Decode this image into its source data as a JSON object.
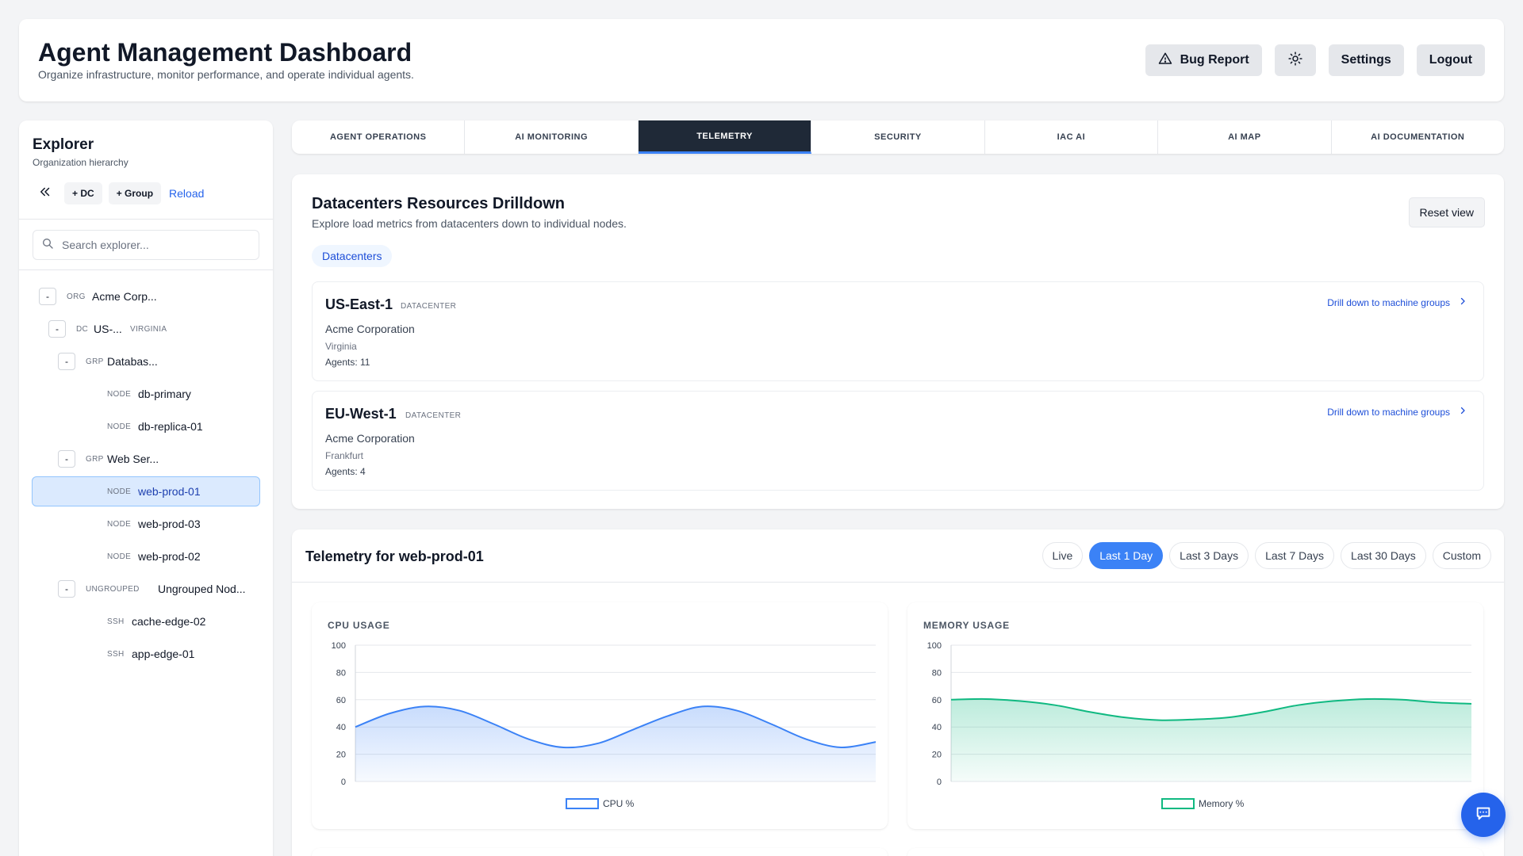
{
  "header": {
    "title": "Agent Management Dashboard",
    "subtitle": "Organize infrastructure, monitor performance, and operate individual agents.",
    "bug_report_label": "Bug Report",
    "settings_label": "Settings",
    "logout_label": "Logout"
  },
  "explorer": {
    "title": "Explorer",
    "subtitle": "Organization hierarchy",
    "add_dc_label": "+ DC",
    "add_group_label": "+ Group",
    "reload_label": "Reload",
    "search_placeholder": "Search explorer...",
    "tree": [
      {
        "toggle": "-",
        "tag": "ORG",
        "name": "Acme Corp...",
        "sub": ""
      },
      {
        "toggle": "-",
        "tag": "DC",
        "name": "US-...",
        "sub": "VIRGINIA"
      },
      {
        "toggle": "-",
        "tag": "GRP",
        "name": "Databas...",
        "sub": ""
      },
      {
        "toggle": "",
        "tag": "NODE",
        "name": "db-primary",
        "sub": ""
      },
      {
        "toggle": "",
        "tag": "NODE",
        "name": "db-replica-01",
        "sub": ""
      },
      {
        "toggle": "-",
        "tag": "GRP",
        "name": "Web Ser...",
        "sub": ""
      },
      {
        "toggle": "",
        "tag": "NODE",
        "name": "web-prod-01",
        "sub": ""
      },
      {
        "toggle": "",
        "tag": "NODE",
        "name": "web-prod-03",
        "sub": ""
      },
      {
        "toggle": "",
        "tag": "NODE",
        "name": "web-prod-02",
        "sub": ""
      },
      {
        "toggle": "-",
        "tag": "UNGROUPED",
        "name": "Ungrouped Nod...",
        "sub": ""
      },
      {
        "toggle": "",
        "tag": "SSH",
        "name": "cache-edge-02",
        "sub": ""
      },
      {
        "toggle": "",
        "tag": "SSH",
        "name": "app-edge-01",
        "sub": ""
      }
    ],
    "selected_item": "web-prod-01"
  },
  "tabs": [
    {
      "label": "AGENT OPERATIONS",
      "active": false
    },
    {
      "label": "AI MONITORING",
      "active": false
    },
    {
      "label": "TELEMETRY",
      "active": true
    },
    {
      "label": "SECURITY",
      "active": false
    },
    {
      "label": "IAC AI",
      "active": false
    },
    {
      "label": "AI MAP",
      "active": false
    },
    {
      "label": "AI DOCUMENTATION",
      "active": false
    }
  ],
  "drilldown": {
    "title": "Datacenters Resources Drilldown",
    "subtitle": "Explore load metrics from datacenters down to individual nodes.",
    "reset_label": "Reset view",
    "breadcrumb": "Datacenters",
    "datacenters": [
      {
        "name": "US-East-1",
        "kind": "DATACENTER",
        "org": "Acme Corporation",
        "location": "Virginia",
        "agents": "Agents: 11",
        "link": "Drill down to machine groups"
      },
      {
        "name": "EU-West-1",
        "kind": "DATACENTER",
        "org": "Acme Corporation",
        "location": "Frankfurt",
        "agents": "Agents: 4",
        "link": "Drill down to machine groups"
      }
    ]
  },
  "telemetry": {
    "title": "Telemetry for web-prod-01",
    "ranges": [
      {
        "label": "Live",
        "active": false
      },
      {
        "label": "Last 1 Day",
        "active": true
      },
      {
        "label": "Last 3 Days",
        "active": false
      },
      {
        "label": "Last 7 Days",
        "active": false
      },
      {
        "label": "Last 30 Days",
        "active": false
      },
      {
        "label": "Custom",
        "active": false
      }
    ]
  },
  "chart_data": [
    {
      "type": "area",
      "title": "CPU USAGE",
      "ylim": [
        0,
        100
      ],
      "yticks": [
        0,
        20,
        40,
        60,
        80,
        100
      ],
      "grid": true,
      "legend": "bottom-center",
      "color": "#3b82f6",
      "series": [
        {
          "name": "CPU %",
          "values": [
            40,
            50,
            55,
            52,
            42,
            31,
            25,
            28,
            38,
            48,
            55,
            52,
            42,
            31,
            25,
            29
          ]
        }
      ]
    },
    {
      "type": "area",
      "title": "MEMORY USAGE",
      "ylim": [
        0,
        100
      ],
      "yticks": [
        0,
        20,
        40,
        60,
        80,
        100
      ],
      "grid": true,
      "legend": "bottom-center",
      "color": "#10b981",
      "series": [
        {
          "name": "Memory %",
          "values": [
            60,
            60.5,
            59,
            56,
            51,
            47,
            45,
            45.5,
            47,
            51,
            56,
            59,
            60.5,
            60,
            58,
            57
          ]
        }
      ]
    }
  ],
  "colors": {
    "accent": "#3b82f6",
    "tab_active_bg": "#1f2937",
    "link": "#1d4ed8",
    "memory": "#10b981"
  }
}
